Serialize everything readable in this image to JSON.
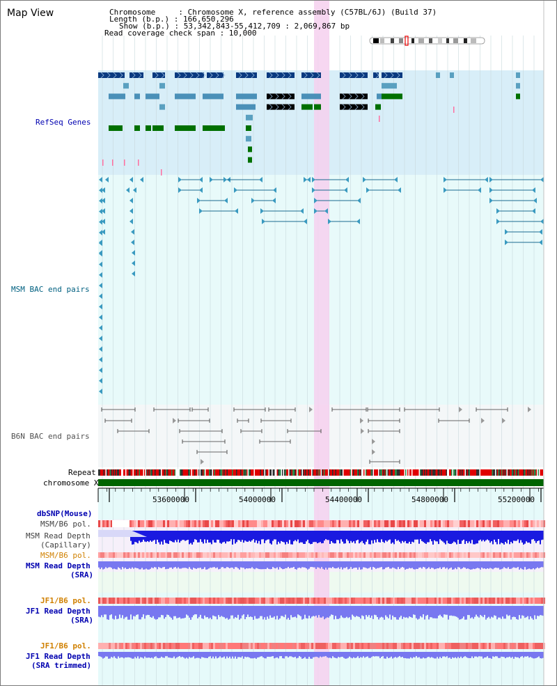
{
  "app": {
    "title": "Map View"
  },
  "header": {
    "chromosome_line": "Chromosome     : Chromosome X, reference assembly (C57BL/6J) (Build 37)",
    "length_line": "Length (b.p.) : 166,650,296",
    "show_line": "Show (b.p.) : 53,342,843-55,412,709 : 2,069,867 bp",
    "coverage_line": "Read coverage check span : 10,000"
  },
  "tracks": {
    "refseq": {
      "label": "RefSeq Genes",
      "color": "#0000b0"
    },
    "msm_bac": {
      "label": "MSM BAC end pairs",
      "color": "#006080"
    },
    "b6n_bac": {
      "label": "B6N BAC end pairs",
      "color": "#505050"
    },
    "repeat": {
      "label": "Repeat"
    },
    "chromosome": {
      "label": "chromosome X"
    },
    "dbsnp": {
      "label": "dbSNP(Mouse)",
      "color": "#0000b0"
    },
    "msm_b6_pol_cap": {
      "label": "MSM/B6 pol.",
      "color": "#404040"
    },
    "msm_depth_cap": {
      "label1": "MSM Read Depth",
      "label2": "(Capillary)",
      "color": "#404040"
    },
    "msm_b6_pol_sra": {
      "label": "MSM/B6 pol.",
      "color": "#d08000"
    },
    "msm_depth_sra": {
      "label1": "MSM Read Depth",
      "label2": "(SRA)",
      "color": "#0000b0"
    },
    "jf1_b6_pol": {
      "label": "JF1/B6 pol.",
      "color": "#d08000"
    },
    "jf1_depth": {
      "label1": "JF1 Read Depth",
      "label2": "(SRA)",
      "color": "#0000b0"
    },
    "jf1_b6_pol_trim": {
      "label": "JF1/B6 pol.",
      "color": "#d08000"
    },
    "jf1_depth_trim": {
      "label1": "JF1 Read Depth",
      "label2": "(SRA trimmed)",
      "color": "#0000b0"
    }
  },
  "axis": {
    "ticks": [
      "53600000",
      "54000000",
      "54400000",
      "54800000",
      "55200000"
    ]
  },
  "colors": {
    "refseq_bg": "#d8eef8",
    "msm_bg": "#e8fafa",
    "b6n_bg": "#f4f7f8",
    "highlight": "#f6d0ee",
    "chrom_bar": "#006400",
    "depth_blue": "#1a1ae0",
    "depth_light": "#7878f0"
  }
}
